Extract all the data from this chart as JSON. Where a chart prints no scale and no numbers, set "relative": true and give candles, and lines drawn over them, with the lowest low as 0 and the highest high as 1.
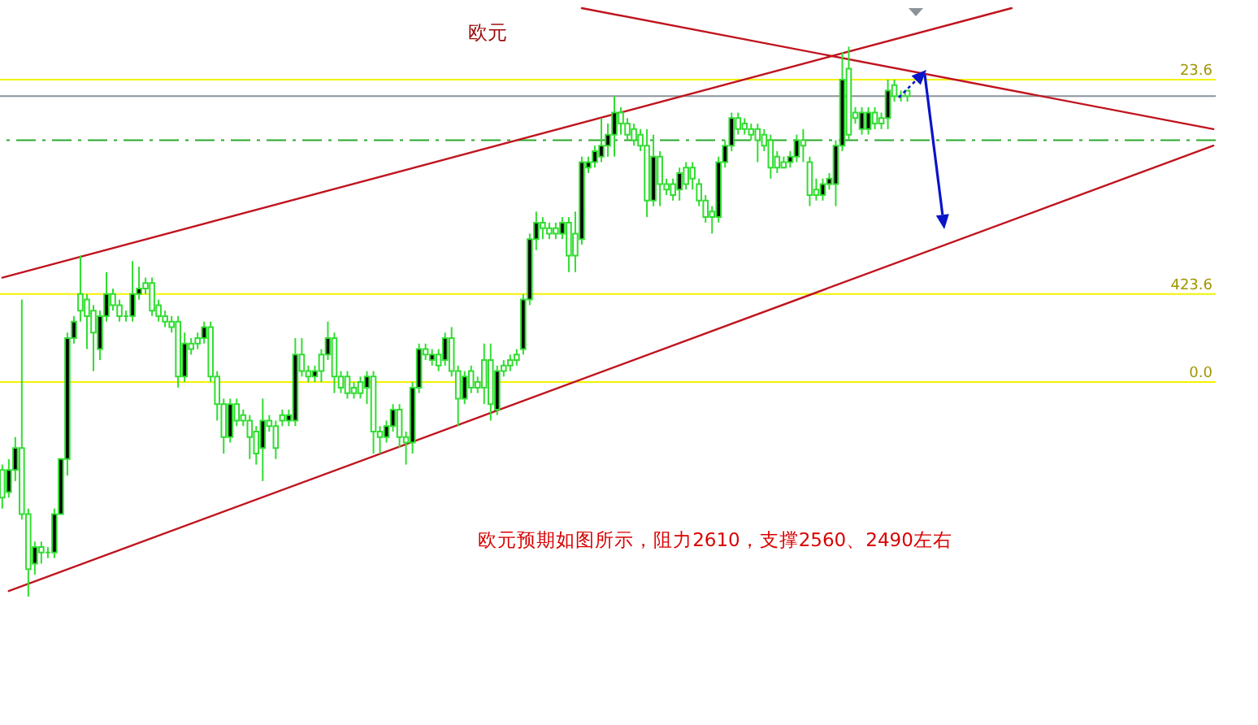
{
  "chart_data": {
    "type": "candlestick",
    "title": "欧元",
    "annotations": [
      "欧元预期如图所示，阻力2610，支撑2560、2490左右",
      {
        "text": "23.6",
        "y": 0.94
      },
      {
        "text": "423.6",
        "y": 0.55
      },
      {
        "text": "0.0",
        "y": 0.39
      }
    ],
    "relative": true,
    "tick_labels": false,
    "color": "#30dd30",
    "categories": [
      null,
      null,
      null,
      null,
      null,
      null,
      null,
      null,
      null,
      null,
      null,
      null,
      null,
      null,
      null,
      null,
      null,
      null,
      null,
      null,
      null,
      null,
      null,
      null,
      null,
      null,
      null,
      null,
      null,
      null,
      null,
      null,
      null,
      null,
      null,
      null,
      null,
      null,
      null,
      null,
      null,
      null,
      null,
      null,
      null,
      null,
      null,
      null,
      null,
      null,
      null,
      null,
      null,
      null,
      null,
      null,
      null,
      null,
      null,
      null,
      null,
      null,
      null,
      null,
      null,
      null,
      null,
      null,
      null,
      null,
      null,
      null,
      null,
      null,
      null,
      null,
      null,
      null,
      null,
      null,
      null,
      null,
      null,
      null,
      null,
      null,
      null,
      null,
      null,
      null,
      null,
      null,
      null,
      null,
      null,
      null,
      null,
      null,
      null,
      null,
      null,
      null,
      null,
      null,
      null,
      null,
      null,
      null,
      null,
      null,
      null,
      null,
      null,
      null,
      null,
      null,
      null,
      null,
      null,
      null,
      null,
      null,
      null,
      null,
      null,
      null,
      null,
      null,
      null,
      null,
      null,
      null,
      null,
      null,
      null,
      null,
      null,
      null,
      null,
      null,
      null,
      null,
      null,
      null,
      null,
      null,
      null,
      null,
      null,
      null,
      null,
      null,
      null,
      null,
      null,
      null,
      null,
      null,
      null,
      null,
      null,
      null,
      null,
      null,
      null,
      null,
      null,
      null,
      null,
      null,
      null,
      null,
      null,
      null,
      null,
      null,
      null,
      null,
      null,
      null,
      null,
      null,
      null,
      null,
      null,
      null,
      null
    ],
    "ohlc": [
      [
        0.23,
        0.24,
        0.16,
        0.18
      ],
      [
        0.19,
        0.25,
        0.18,
        0.23
      ],
      [
        0.23,
        0.29,
        0.21,
        0.27
      ],
      [
        0.27,
        0.54,
        0.14,
        0.15
      ],
      [
        0.15,
        0.16,
        0,
        0.05
      ],
      [
        0.06,
        0.1,
        0.04,
        0.09
      ],
      [
        0.09,
        0.1,
        0.06,
        0.08
      ],
      [
        0.08,
        0.09,
        0.07,
        0.08
      ],
      [
        0.08,
        0.16,
        0.07,
        0.15
      ],
      [
        0.15,
        0.25,
        0.15,
        0.25
      ],
      [
        0.25,
        0.48,
        0.22,
        0.47
      ],
      [
        0.47,
        0.51,
        0.46,
        0.5
      ],
      [
        0.55,
        0.62,
        0.5,
        0.52
      ],
      [
        0.54,
        0.55,
        0.45,
        0.51
      ],
      [
        0.52,
        0.53,
        0.41,
        0.48
      ],
      [
        0.45,
        0.52,
        0.43,
        0.51
      ],
      [
        0.51,
        0.59,
        0.5,
        0.55
      ],
      [
        0.55,
        0.56,
        0.52,
        0.53
      ],
      [
        0.53,
        0.54,
        0.5,
        0.51
      ],
      [
        0.51,
        0.52,
        0.5,
        0.51
      ],
      [
        0.51,
        0.61,
        0.5,
        0.55
      ],
      [
        0.55,
        0.6,
        0.54,
        0.56
      ],
      [
        0.57,
        0.58,
        0.55,
        0.56
      ],
      [
        0.57,
        0.58,
        0.51,
        0.52
      ],
      [
        0.53,
        0.54,
        0.5,
        0.51
      ],
      [
        0.51,
        0.52,
        0.49,
        0.5
      ],
      [
        0.5,
        0.51,
        0.48,
        0.49
      ],
      [
        0.5,
        0.51,
        0.38,
        0.4
      ],
      [
        0.4,
        0.48,
        0.39,
        0.46
      ],
      [
        0.46,
        0.47,
        0.44,
        0.45
      ],
      [
        0.47,
        0.48,
        0.45,
        0.46
      ],
      [
        0.47,
        0.5,
        0.46,
        0.49
      ],
      [
        0.49,
        0.5,
        0.39,
        0.4
      ],
      [
        0.4,
        0.41,
        0.32,
        0.35
      ],
      [
        0.35,
        0.36,
        0.26,
        0.29
      ],
      [
        0.29,
        0.36,
        0.28,
        0.35
      ],
      [
        0.35,
        0.36,
        0.31,
        0.32
      ],
      [
        0.33,
        0.34,
        0.31,
        0.32
      ],
      [
        0.32,
        0.33,
        0.25,
        0.29
      ],
      [
        0.3,
        0.31,
        0.24,
        0.26
      ],
      [
        0.27,
        0.36,
        0.21,
        0.32
      ],
      [
        0.32,
        0.33,
        0.3,
        0.31
      ],
      [
        0.31,
        0.32,
        0.25,
        0.27
      ],
      [
        0.33,
        0.34,
        0.31,
        0.32
      ],
      [
        0.32,
        0.34,
        0.31,
        0.33
      ],
      [
        0.32,
        0.47,
        0.31,
        0.44
      ],
      [
        0.44,
        0.47,
        0.4,
        0.41
      ],
      [
        0.41,
        0.42,
        0.39,
        0.4
      ],
      [
        0.4,
        0.42,
        0.39,
        0.41
      ],
      [
        0.44,
        0.45,
        0.39,
        0.41
      ],
      [
        0.44,
        0.5,
        0.43,
        0.47
      ],
      [
        0.47,
        0.48,
        0.37,
        0.4
      ],
      [
        0.4,
        0.41,
        0.37,
        0.38
      ],
      [
        0.4,
        0.41,
        0.36,
        0.37
      ],
      [
        0.38,
        0.39,
        0.36,
        0.37
      ],
      [
        0.39,
        0.4,
        0.36,
        0.37
      ],
      [
        0.38,
        0.41,
        0.35,
        0.4
      ],
      [
        0.4,
        0.41,
        0.26,
        0.3
      ],
      [
        0.3,
        0.31,
        0.26,
        0.29
      ],
      [
        0.29,
        0.32,
        0.28,
        0.31
      ],
      [
        0.31,
        0.35,
        0.3,
        0.34
      ],
      [
        0.34,
        0.35,
        0.27,
        0.29
      ],
      [
        0.29,
        0.3,
        0.24,
        0.28
      ],
      [
        0.28,
        0.39,
        0.26,
        0.38
      ],
      [
        0.38,
        0.46,
        0.37,
        0.45
      ],
      [
        0.45,
        0.46,
        0.43,
        0.44
      ],
      [
        0.43,
        0.45,
        0.42,
        0.44
      ],
      [
        0.44,
        0.45,
        0.41,
        0.42
      ],
      [
        0.43,
        0.48,
        0.42,
        0.47
      ],
      [
        0.47,
        0.49,
        0.4,
        0.41
      ],
      [
        0.41,
        0.42,
        0.31,
        0.36
      ],
      [
        0.36,
        0.41,
        0.35,
        0.4
      ],
      [
        0.41,
        0.42,
        0.37,
        0.38
      ],
      [
        0.39,
        0.4,
        0.37,
        0.38
      ],
      [
        0.43,
        0.46,
        0.35,
        0.38
      ],
      [
        0.43,
        0.46,
        0.32,
        0.35
      ],
      [
        0.34,
        0.42,
        0.33,
        0.41
      ],
      [
        0.42,
        0.43,
        0.4,
        0.41
      ],
      [
        0.43,
        0.44,
        0.41,
        0.42
      ],
      [
        0.44,
        0.45,
        0.42,
        0.43
      ],
      [
        0.45,
        0.55,
        0.44,
        0.54
      ],
      [
        0.54,
        0.66,
        0.53,
        0.65
      ],
      [
        0.65,
        0.7,
        0.63,
        0.68
      ],
      [
        0.68,
        0.69,
        0.65,
        0.67
      ],
      [
        0.67,
        0.68,
        0.65,
        0.66
      ],
      [
        0.67,
        0.68,
        0.65,
        0.66
      ],
      [
        0.66,
        0.69,
        0.65,
        0.68
      ],
      [
        0.68,
        0.69,
        0.59,
        0.62
      ],
      [
        0.66,
        0.7,
        0.59,
        0.62
      ],
      [
        0.65,
        0.8,
        0.64,
        0.79
      ],
      [
        0.78,
        0.8,
        0.77,
        0.79
      ],
      [
        0.79,
        0.82,
        0.78,
        0.81
      ],
      [
        0.8,
        0.87,
        0.79,
        0.82
      ],
      [
        0.82,
        0.86,
        0.8,
        0.84
      ],
      [
        0.84,
        0.91,
        0.8,
        0.88
      ],
      [
        0.88,
        0.89,
        0.84,
        0.86
      ],
      [
        0.86,
        0.87,
        0.83,
        0.84
      ],
      [
        0.85,
        0.86,
        0.82,
        0.83
      ],
      [
        0.84,
        0.85,
        0.81,
        0.82
      ],
      [
        0.82,
        0.85,
        0.69,
        0.72
      ],
      [
        0.72,
        0.84,
        0.71,
        0.8
      ],
      [
        0.8,
        0.81,
        0.71,
        0.75
      ],
      [
        0.75,
        0.76,
        0.73,
        0.74
      ],
      [
        0.75,
        0.76,
        0.72,
        0.73
      ],
      [
        0.74,
        0.78,
        0.72,
        0.77
      ],
      [
        0.78,
        0.79,
        0.74,
        0.75
      ],
      [
        0.78,
        0.79,
        0.74,
        0.76
      ],
      [
        0.75,
        0.76,
        0.71,
        0.72
      ],
      [
        0.72,
        0.73,
        0.68,
        0.69
      ],
      [
        0.7,
        0.71,
        0.66,
        0.69
      ],
      [
        0.69,
        0.8,
        0.68,
        0.79
      ],
      [
        0.79,
        0.83,
        0.78,
        0.82
      ],
      [
        0.82,
        0.88,
        0.81,
        0.87
      ],
      [
        0.87,
        0.88,
        0.84,
        0.85
      ],
      [
        0.86,
        0.87,
        0.84,
        0.85
      ],
      [
        0.85,
        0.86,
        0.83,
        0.84
      ],
      [
        0.85,
        0.86,
        0.79,
        0.83
      ],
      [
        0.84,
        0.85,
        0.81,
        0.82
      ],
      [
        0.83,
        0.84,
        0.76,
        0.78
      ],
      [
        0.8,
        0.81,
        0.77,
        0.78
      ],
      [
        0.79,
        0.8,
        0.78,
        0.78
      ],
      [
        0.79,
        0.81,
        0.78,
        0.8
      ],
      [
        0.8,
        0.84,
        0.79,
        0.83
      ],
      [
        0.83,
        0.85,
        0.79,
        0.82
      ],
      [
        0.79,
        0.8,
        0.71,
        0.73
      ],
      [
        0.74,
        0.76,
        0.72,
        0.73
      ],
      [
        0.73,
        0.76,
        0.72,
        0.75
      ],
      [
        0.75,
        0.77,
        0.74,
        0.76
      ],
      [
        0.75,
        0.83,
        0.71,
        0.82
      ],
      [
        0.82,
        0.99,
        0.81,
        0.94
      ],
      [
        0.96,
        1,
        0.83,
        0.84
      ],
      [
        0.88,
        0.89,
        0.86,
        0.87
      ],
      [
        0.85,
        0.89,
        0.84,
        0.88
      ],
      [
        0.85,
        0.89,
        0.84,
        0.88
      ],
      [
        0.88,
        0.89,
        0.85,
        0.86
      ],
      [
        0.87,
        0.88,
        0.85,
        0.86
      ],
      [
        0.87,
        0.94,
        0.85,
        0.92
      ],
      [
        0.93,
        0.94,
        0.9,
        0.91
      ],
      [
        0.91,
        0.92,
        0.9,
        0.91
      ],
      [
        0.92,
        0.92,
        0.9,
        0.91
      ],
      null,
      null,
      null,
      null,
      null,
      null,
      null,
      null,
      null,
      null,
      null,
      null,
      null,
      null,
      null,
      null,
      null,
      null,
      null,
      null,
      null,
      null,
      null,
      null,
      null,
      null,
      null,
      null,
      null,
      null,
      null,
      null,
      null,
      null,
      null,
      null,
      null,
      null,
      null,
      null,
      null,
      null,
      null,
      null,
      null,
      null,
      null
    ],
    "series": [
      {
        "type": "line",
        "color": "#c0141e",
        "values": [
          0.58,
          null,
          null,
          null,
          null,
          null,
          null,
          null,
          null,
          null,
          null,
          null,
          null,
          null,
          null,
          null,
          null,
          null,
          null,
          null,
          null,
          null,
          null,
          null,
          null,
          null,
          null,
          null,
          null,
          null,
          null,
          null,
          null,
          null,
          null,
          null,
          null,
          null,
          null,
          null,
          null,
          null,
          null,
          null,
          null,
          null,
          null,
          null,
          null,
          null,
          null,
          null,
          null,
          null,
          null,
          null,
          null,
          null,
          null,
          null,
          null,
          null,
          null,
          null,
          null,
          null,
          null,
          null,
          null,
          null,
          null,
          null,
          null,
          null,
          null,
          null,
          null,
          null,
          null,
          null,
          null,
          null,
          null,
          null,
          null,
          null,
          null,
          null,
          null,
          null,
          null,
          null,
          null,
          null,
          null,
          null,
          null,
          null,
          null,
          null,
          null,
          null,
          null,
          null,
          null,
          null,
          null,
          null,
          null,
          null,
          null,
          null,
          null,
          null,
          null,
          null,
          null,
          null,
          null,
          null,
          null,
          null,
          null,
          null,
          null,
          null,
          null,
          null,
          null,
          null,
          null,
          null,
          null,
          null,
          null,
          null,
          null,
          null,
          null,
          null,
          null,
          null,
          null,
          null,
          null,
          null,
          null,
          null,
          null,
          null,
          null,
          null,
          null,
          null,
          null,
          1.07,
          null,
          null,
          null,
          null,
          null,
          null,
          null,
          null,
          null,
          null,
          null,
          null,
          null,
          null,
          null,
          null,
          null,
          null,
          null,
          null,
          null,
          null,
          null,
          null,
          null,
          null,
          null,
          null,
          null,
          null,
          null
        ]
      },
      {
        "type": "line",
        "color": "#c0141e",
        "values": [
          null,
          null,
          null,
          null,
          null,
          null,
          null,
          null,
          null,
          null,
          null,
          null,
          null,
          null,
          null,
          null,
          null,
          null,
          null,
          null,
          null,
          null,
          null,
          null,
          null,
          null,
          null,
          null,
          null,
          null,
          null,
          null,
          null,
          null,
          null,
          null,
          null,
          null,
          null,
          null,
          null,
          null,
          null,
          null,
          null,
          null,
          null,
          null,
          null,
          null,
          null,
          null,
          null,
          null,
          null,
          null,
          null,
          null,
          null,
          null,
          null,
          null,
          null,
          null,
          null,
          null,
          null,
          null,
          null,
          null,
          null,
          null,
          null,
          null,
          null,
          null,
          null,
          null,
          null,
          null,
          null,
          null,
          null,
          null,
          null,
          null,
          null,
          null,
          null,
          1.07,
          null,
          null,
          null,
          null,
          null,
          null,
          null,
          null,
          null,
          null,
          null,
          null,
          null,
          null,
          null,
          null,
          null,
          null,
          null,
          null,
          null,
          null,
          null,
          null,
          null,
          null,
          null,
          null,
          null,
          null,
          null,
          null,
          null,
          null,
          null,
          null,
          null,
          null,
          null,
          null,
          null,
          null,
          null,
          null,
          null,
          null,
          null,
          null,
          null,
          null,
          null,
          null,
          null,
          null,
          null,
          null,
          null,
          null,
          null,
          null,
          null,
          null,
          null,
          null,
          null,
          null,
          null,
          null,
          null,
          null,
          null,
          null,
          null,
          null,
          null,
          null,
          null,
          null,
          null,
          null,
          null,
          null,
          null,
          null,
          null,
          null,
          null,
          null,
          null,
          null,
          null,
          null,
          null,
          null,
          null,
          null,
          0.85
        ]
      },
      {
        "type": "line",
        "color": "#c0141e",
        "values": [
          null,
          0.01,
          null,
          null,
          null,
          null,
          null,
          null,
          null,
          null,
          null,
          null,
          null,
          null,
          null,
          null,
          null,
          null,
          null,
          null,
          null,
          null,
          null,
          null,
          null,
          null,
          null,
          null,
          null,
          null,
          null,
          null,
          null,
          null,
          null,
          null,
          null,
          null,
          null,
          null,
          null,
          null,
          null,
          null,
          null,
          null,
          null,
          null,
          null,
          null,
          null,
          null,
          null,
          null,
          null,
          null,
          null,
          null,
          null,
          null,
          null,
          null,
          null,
          null,
          null,
          null,
          null,
          null,
          null,
          null,
          null,
          null,
          null,
          null,
          null,
          null,
          null,
          null,
          null,
          null,
          null,
          null,
          null,
          null,
          null,
          null,
          null,
          null,
          null,
          null,
          null,
          null,
          null,
          null,
          null,
          null,
          null,
          null,
          null,
          null,
          null,
          null,
          null,
          null,
          null,
          null,
          null,
          null,
          null,
          null,
          null,
          null,
          null,
          null,
          null,
          null,
          null,
          null,
          null,
          null,
          null,
          null,
          null,
          null,
          null,
          null,
          null,
          null,
          null,
          null,
          null,
          null,
          null,
          null,
          null,
          null,
          null,
          null,
          null,
          null,
          null,
          null,
          null,
          null,
          null,
          null,
          null,
          null,
          null,
          null,
          null,
          null,
          null,
          null,
          null,
          null,
          null,
          null,
          null,
          null,
          null,
          null,
          null,
          null,
          null,
          null,
          null,
          null,
          null,
          null,
          null,
          null,
          null,
          null,
          null,
          null,
          null,
          null,
          null,
          null,
          null,
          null,
          null,
          null,
          null,
          null,
          0.82
        ]
      }
    ],
    "ref_lines": [
      {
        "axis": "y",
        "value": 0.94,
        "color": "#f2f200"
      },
      {
        "axis": "y",
        "value": 0.91,
        "color": "#8a949c"
      },
      {
        "axis": "y",
        "value": 0.83,
        "color": "#2aa82a",
        "line_style": "dashed"
      },
      {
        "axis": "y",
        "value": 0.55,
        "color": "#f2f200"
      },
      {
        "axis": "y",
        "value": 0.39,
        "color": "#f2f200"
      }
    ]
  }
}
